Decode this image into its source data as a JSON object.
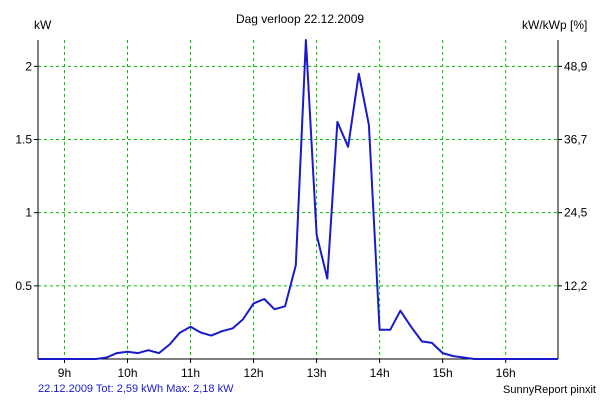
{
  "chart_data": {
    "type": "line",
    "title": "Dag  verloop 22.12.2009",
    "ylabel_left": "kW",
    "ylabel_right": "kW/kWp [%]",
    "x_tick_labels": [
      "9h",
      "10h",
      "11h",
      "12h",
      "13h",
      "14h",
      "15h",
      "16h"
    ],
    "x_tick_hours": [
      9,
      10,
      11,
      12,
      13,
      14,
      15,
      16
    ],
    "xlim": [
      8.58,
      16.83
    ],
    "ylim_left": [
      0,
      2.18
    ],
    "left_ticks": [
      0.5,
      1,
      1.5,
      2
    ],
    "left_tick_labels": [
      "0.5",
      "1",
      "1.5",
      "2"
    ],
    "right_ticks": [
      0.5,
      1,
      1.5,
      2
    ],
    "right_tick_labels": [
      "12,2",
      "24,5",
      "36,7",
      "48,9"
    ],
    "grid": true,
    "line_color": "#1a1acc",
    "grid_color": "#00c000",
    "series": [
      {
        "x": [
          8.58,
          9.5,
          9.67,
          9.83,
          10.0,
          10.17,
          10.33,
          10.5,
          10.67,
          10.83,
          11.0,
          11.17,
          11.33,
          11.5,
          11.67,
          11.83,
          12.0,
          12.17,
          12.33,
          12.5,
          12.67,
          12.83,
          13.0,
          13.17,
          13.33,
          13.5,
          13.67,
          13.83,
          14.0,
          14.17,
          14.33,
          14.5,
          14.67,
          14.83,
          15.0,
          15.17,
          15.33,
          15.5,
          16.0,
          16.83
        ],
        "y": [
          0.0,
          0.0,
          0.01,
          0.04,
          0.05,
          0.04,
          0.06,
          0.04,
          0.1,
          0.18,
          0.22,
          0.18,
          0.16,
          0.19,
          0.21,
          0.27,
          0.38,
          0.41,
          0.34,
          0.36,
          0.64,
          2.18,
          0.85,
          0.55,
          1.62,
          1.45,
          1.95,
          1.6,
          0.2,
          0.2,
          0.33,
          0.22,
          0.12,
          0.11,
          0.04,
          0.02,
          0.01,
          0.0,
          0.0,
          0.0
        ]
      }
    ]
  },
  "footer": {
    "summary": "22.12.2009 Tot: 2,59 kWh Max: 2,18 kW",
    "brand": "SunnyReport pinxit"
  }
}
